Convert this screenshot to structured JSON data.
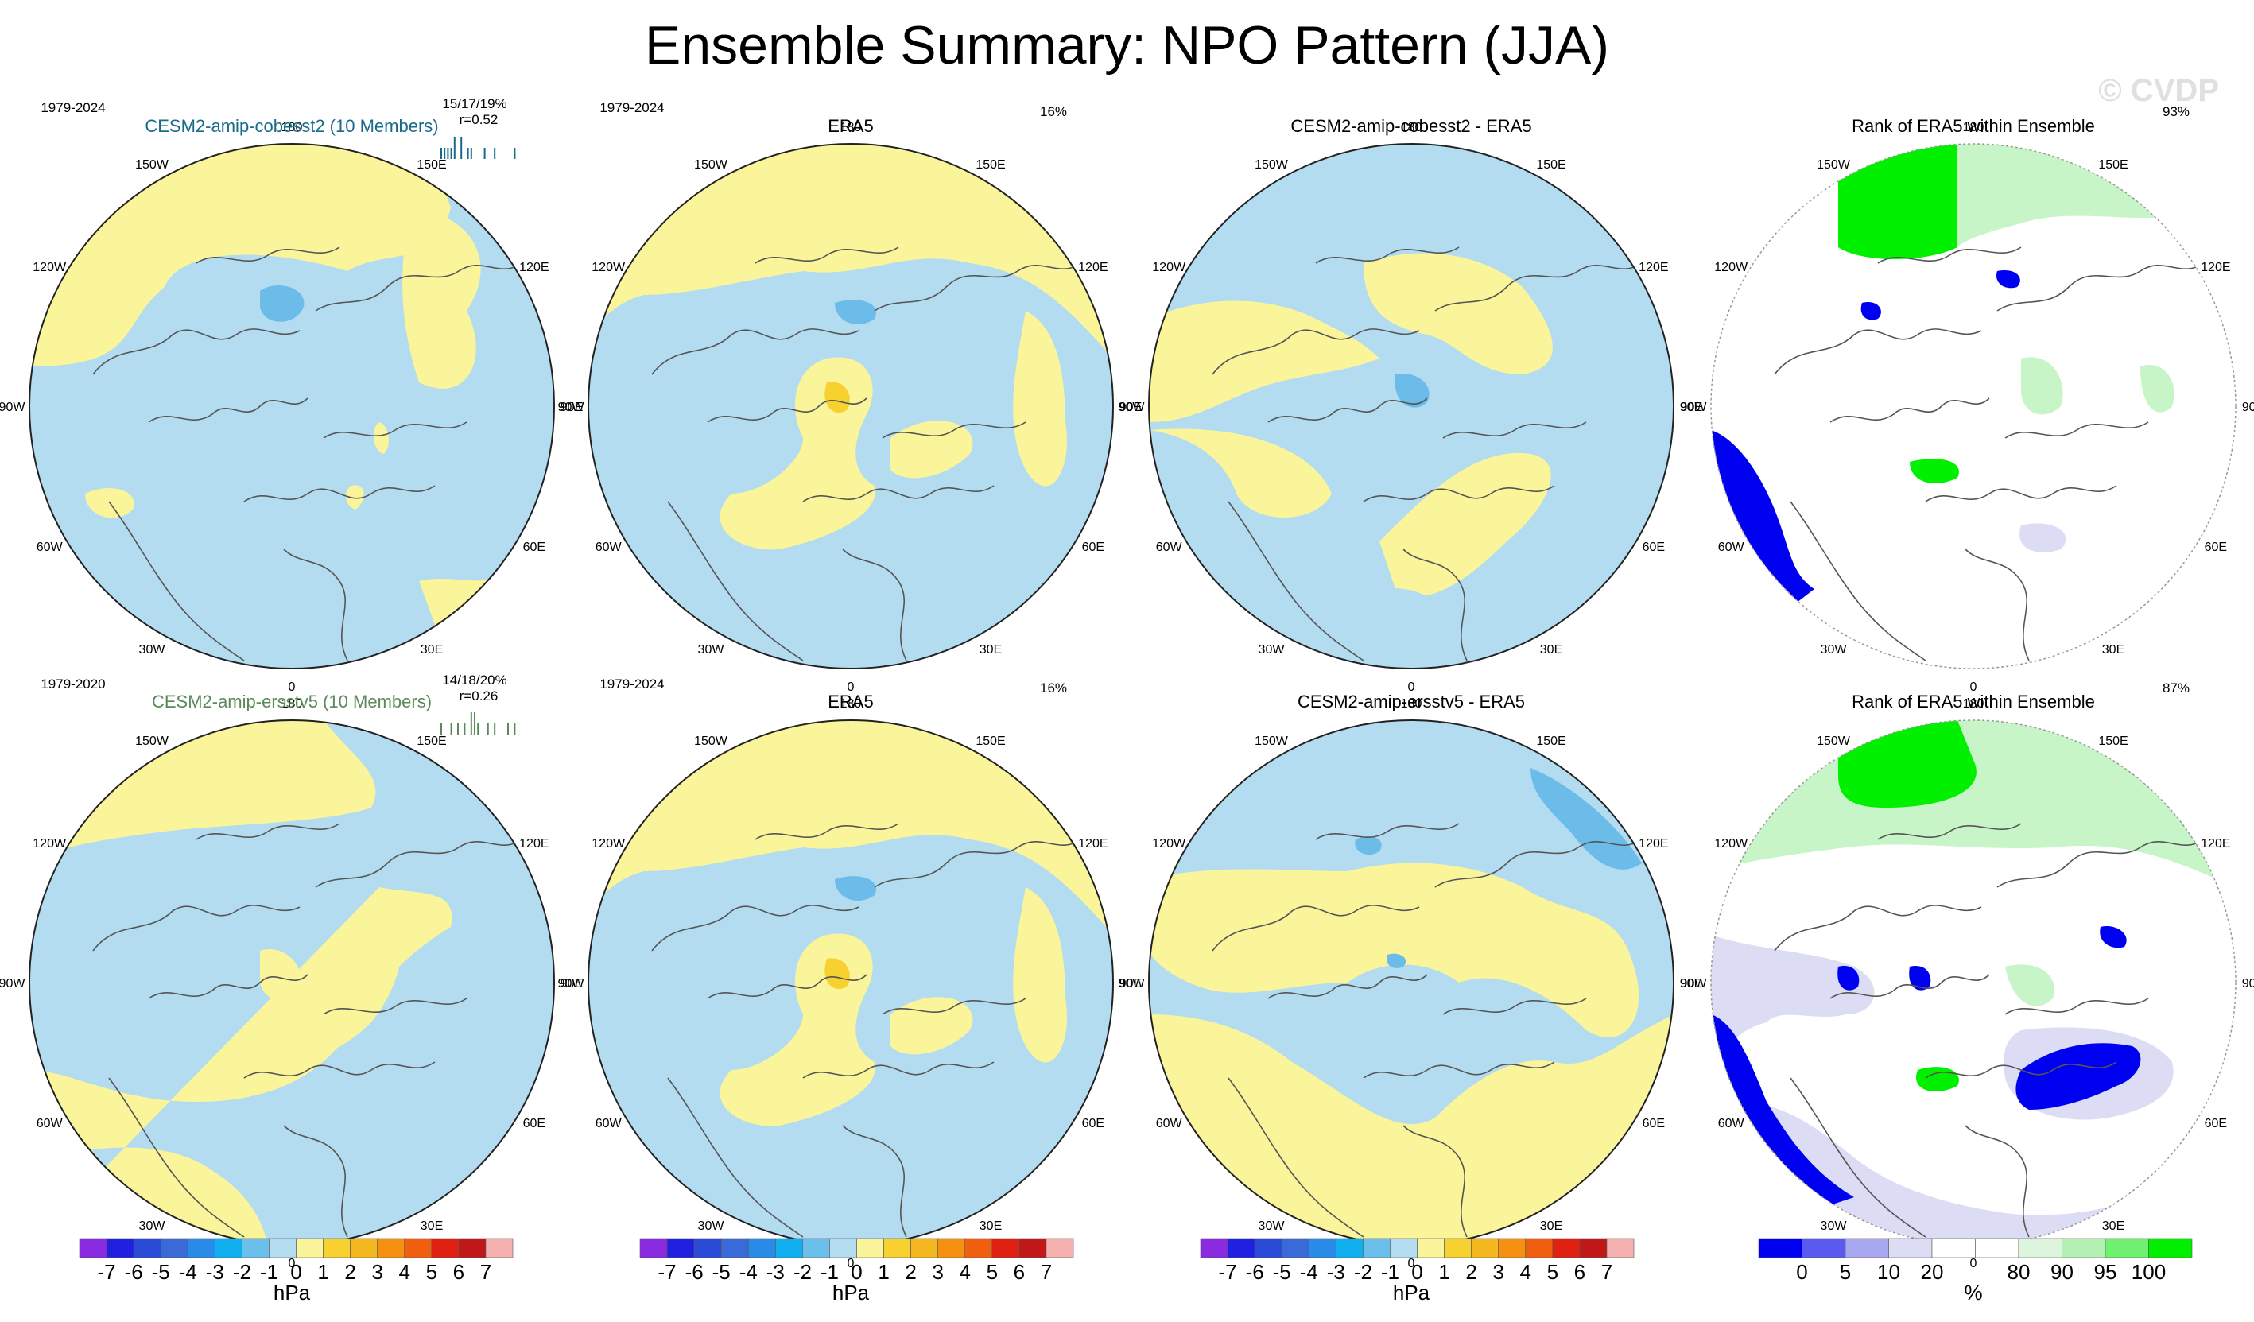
{
  "title": "Ensemble Summary: NPO Pattern (JJA)",
  "watermark": "© CVDP",
  "colors": {
    "pos_pale": "#faf49a",
    "pos_strong": "#f7d130",
    "neg_pale": "#b3dcf0",
    "neg_strong": "#6cbcea",
    "rank_green": "#00f000",
    "rank_lightgreen": "#c8f5c8",
    "rank_blue": "#0000f0",
    "rank_lightblue": "#dcdcf5"
  },
  "lon_labels": [
    "180",
    "150E",
    "120E",
    "90E",
    "60E",
    "30E",
    "0",
    "30W",
    "60W",
    "90W",
    "120W",
    "150W"
  ],
  "chart_data": [
    {
      "type": "heatmap",
      "id": "r1c1",
      "title": "CESM2-amip-cobesst2 (10 Members)",
      "title_color": "#1a6a8a",
      "period": "1979-2024",
      "stat1": "15/17/19%",
      "stat2": "r=0.52",
      "spread_ticks": [
        0,
        1,
        2,
        3,
        4,
        6,
        8,
        9,
        13,
        16,
        22
      ],
      "units": "hPa"
    },
    {
      "type": "heatmap",
      "id": "r1c2",
      "title": "ERA5",
      "title_color": "#000000",
      "period": "1979-2024",
      "pct": "16%",
      "units": "hPa"
    },
    {
      "type": "heatmap",
      "id": "r1c3",
      "title": "CESM2-amip-cobesst2 - ERA5",
      "title_color": "#000000",
      "units": "hPa"
    },
    {
      "type": "heatmap",
      "id": "r1c4",
      "title": "Rank of ERA5 within Ensemble",
      "title_color": "#000000",
      "pct": "93%",
      "units": "%"
    },
    {
      "type": "heatmap",
      "id": "r2c1",
      "title": "CESM2-amip-ersstv5 (10 Members)",
      "title_color": "#5a8a5a",
      "period": "1979-2020",
      "stat1": "14/18/20%",
      "stat2": "r=0.26",
      "spread_ticks": [
        0,
        3,
        5,
        7,
        9,
        10,
        11,
        14,
        16,
        20,
        22
      ],
      "units": "hPa"
    },
    {
      "type": "heatmap",
      "id": "r2c2",
      "title": "ERA5",
      "title_color": "#000000",
      "period": "1979-2024",
      "pct": "16%",
      "units": "hPa"
    },
    {
      "type": "heatmap",
      "id": "r2c3",
      "title": "CESM2-amip-ersstv5 - ERA5",
      "title_color": "#000000",
      "units": "hPa"
    },
    {
      "type": "heatmap",
      "id": "r2c4",
      "title": "Rank of ERA5 within Ensemble",
      "title_color": "#000000",
      "pct": "87%",
      "units": "%"
    }
  ],
  "colorbars": {
    "hpa": {
      "labels": [
        "-7",
        "-6",
        "-5",
        "-4",
        "-3",
        "-2",
        "-1",
        "0",
        "1",
        "2",
        "3",
        "4",
        "5",
        "6",
        "7"
      ],
      "colors": [
        "#8a2be2",
        "#2020e0",
        "#2a4ad8",
        "#3a6ad8",
        "#2a8ae8",
        "#10b0f0",
        "#6ac0ea",
        "#b3dcf0",
        "#faf49a",
        "#f7d130",
        "#f5b820",
        "#f59010",
        "#f06010",
        "#e02010",
        "#c01818",
        "#f5b0b0"
      ],
      "unit": "hPa"
    },
    "pct": {
      "labels": [
        "0",
        "5",
        "10",
        "20",
        "80",
        "90",
        "95",
        "100"
      ],
      "colors": [
        "#0000f0",
        "#5a5af0",
        "#a8a8f0",
        "#dcdcf5",
        "#ffffff",
        "#ffffff",
        "#dcf5dc",
        "#b4f0b4",
        "#70f070",
        "#00f000"
      ],
      "unit": "%"
    }
  }
}
